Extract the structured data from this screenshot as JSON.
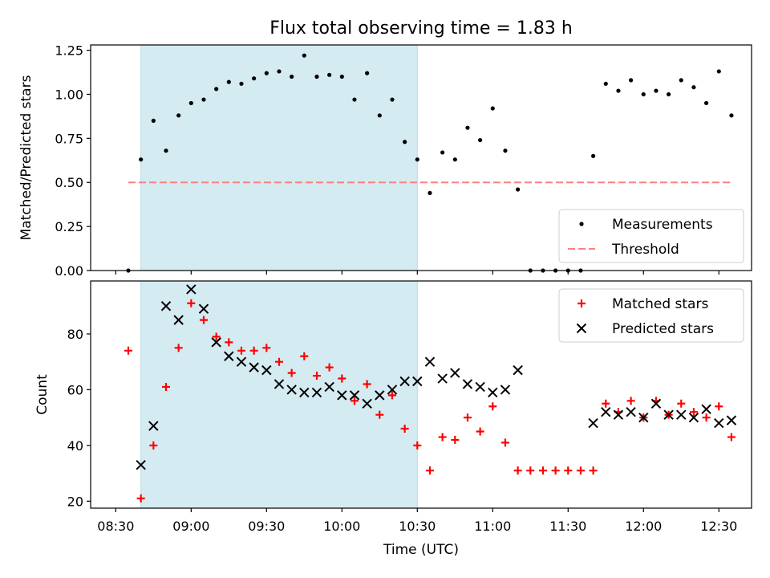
{
  "chart_data": {
    "type": "scatter",
    "title": "Flux total observing time = 1.83 h",
    "xlabel": "Time (UTC)",
    "x_ticks": [
      "08:30",
      "09:00",
      "09:30",
      "10:00",
      "10:30",
      "11:00",
      "11:30",
      "12:00",
      "12:30"
    ],
    "shaded_interval": {
      "x_start": "08:40",
      "x_end": "10:30",
      "color": "#d4ebf1"
    },
    "panels": [
      {
        "ylabel": "Matched/Predicted stars",
        "ylim": [
          0,
          1.28
        ],
        "y_ticks": [
          "0.00",
          "0.25",
          "0.50",
          "0.75",
          "1.00",
          "1.25"
        ],
        "legend_position": "lower-right",
        "series": [
          {
            "name": "Measurements",
            "marker": "dot",
            "color": "#000000",
            "points": [
              [
                "08:35",
                0.0
              ],
              [
                "08:40",
                0.63
              ],
              [
                "08:45",
                0.85
              ],
              [
                "08:50",
                0.68
              ],
              [
                "08:55",
                0.88
              ],
              [
                "09:00",
                0.95
              ],
              [
                "09:05",
                0.97
              ],
              [
                "09:10",
                1.03
              ],
              [
                "09:15",
                1.07
              ],
              [
                "09:20",
                1.06
              ],
              [
                "09:25",
                1.09
              ],
              [
                "09:30",
                1.12
              ],
              [
                "09:35",
                1.13
              ],
              [
                "09:40",
                1.1
              ],
              [
                "09:45",
                1.22
              ],
              [
                "09:50",
                1.1
              ],
              [
                "09:55",
                1.11
              ],
              [
                "10:00",
                1.1
              ],
              [
                "10:05",
                0.97
              ],
              [
                "10:10",
                1.12
              ],
              [
                "10:15",
                0.88
              ],
              [
                "10:20",
                0.97
              ],
              [
                "10:25",
                0.73
              ],
              [
                "10:30",
                0.63
              ],
              [
                "10:35",
                0.44
              ],
              [
                "10:40",
                0.67
              ],
              [
                "10:45",
                0.63
              ],
              [
                "10:50",
                0.81
              ],
              [
                "10:55",
                0.74
              ],
              [
                "11:00",
                0.92
              ],
              [
                "11:05",
                0.68
              ],
              [
                "11:10",
                0.46
              ],
              [
                "11:15",
                0.0
              ],
              [
                "11:20",
                0.0
              ],
              [
                "11:25",
                0.0
              ],
              [
                "11:30",
                0.0
              ],
              [
                "11:35",
                0.0
              ],
              [
                "11:40",
                0.65
              ],
              [
                "11:45",
                1.06
              ],
              [
                "11:50",
                1.02
              ],
              [
                "11:55",
                1.08
              ],
              [
                "12:00",
                1.0
              ],
              [
                "12:05",
                1.02
              ],
              [
                "12:10",
                1.0
              ],
              [
                "12:15",
                1.08
              ],
              [
                "12:20",
                1.04
              ],
              [
                "12:25",
                0.95
              ],
              [
                "12:30",
                1.13
              ],
              [
                "12:35",
                0.88
              ]
            ]
          },
          {
            "name": "Threshold",
            "marker": "dashed-line",
            "color": "#ff7f7f",
            "points": [
              [
                "08:35",
                0.5
              ],
              [
                "12:35",
                0.5
              ]
            ]
          }
        ]
      },
      {
        "ylabel": "Count",
        "ylim": [
          17.5,
          99
        ],
        "y_ticks": [
          "20",
          "40",
          "60",
          "80"
        ],
        "legend_position": "upper-right",
        "series": [
          {
            "name": "Matched stars",
            "marker": "plus",
            "color": "#ff0000",
            "points": [
              [
                "08:35",
                74
              ],
              [
                "08:40",
                21
              ],
              [
                "08:45",
                40
              ],
              [
                "08:50",
                61
              ],
              [
                "08:55",
                75
              ],
              [
                "09:00",
                91
              ],
              [
                "09:05",
                85
              ],
              [
                "09:10",
                79
              ],
              [
                "09:15",
                77
              ],
              [
                "09:20",
                74
              ],
              [
                "09:25",
                74
              ],
              [
                "09:30",
                75
              ],
              [
                "09:35",
                70
              ],
              [
                "09:40",
                66
              ],
              [
                "09:45",
                72
              ],
              [
                "09:50",
                65
              ],
              [
                "09:55",
                68
              ],
              [
                "10:00",
                64
              ],
              [
                "10:05",
                56
              ],
              [
                "10:10",
                62
              ],
              [
                "10:15",
                51
              ],
              [
                "10:20",
                58
              ],
              [
                "10:25",
                46
              ],
              [
                "10:30",
                40
              ],
              [
                "10:35",
                31
              ],
              [
                "10:40",
                43
              ],
              [
                "10:45",
                42
              ],
              [
                "10:50",
                50
              ],
              [
                "10:55",
                45
              ],
              [
                "11:00",
                54
              ],
              [
                "11:05",
                41
              ],
              [
                "11:10",
                31
              ],
              [
                "11:15",
                31
              ],
              [
                "11:20",
                31
              ],
              [
                "11:25",
                31
              ],
              [
                "11:30",
                31
              ],
              [
                "11:35",
                31
              ],
              [
                "11:40",
                31
              ],
              [
                "11:45",
                55
              ],
              [
                "11:50",
                52
              ],
              [
                "11:55",
                56
              ],
              [
                "12:00",
                50
              ],
              [
                "12:05",
                56
              ],
              [
                "12:10",
                51
              ],
              [
                "12:15",
                55
              ],
              [
                "12:20",
                52
              ],
              [
                "12:25",
                50
              ],
              [
                "12:30",
                54
              ],
              [
                "12:35",
                43
              ]
            ]
          },
          {
            "name": "Predicted stars",
            "marker": "x",
            "color": "#000000",
            "points": [
              [
                "08:40",
                33
              ],
              [
                "08:45",
                47
              ],
              [
                "08:50",
                90
              ],
              [
                "08:55",
                85
              ],
              [
                "09:00",
                96
              ],
              [
                "09:05",
                89
              ],
              [
                "09:10",
                77
              ],
              [
                "09:15",
                72
              ],
              [
                "09:20",
                70
              ],
              [
                "09:25",
                68
              ],
              [
                "09:30",
                67
              ],
              [
                "09:35",
                62
              ],
              [
                "09:40",
                60
              ],
              [
                "09:45",
                59
              ],
              [
                "09:50",
                59
              ],
              [
                "09:55",
                61
              ],
              [
                "10:00",
                58
              ],
              [
                "10:05",
                58
              ],
              [
                "10:10",
                55
              ],
              [
                "10:15",
                58
              ],
              [
                "10:20",
                60
              ],
              [
                "10:25",
                63
              ],
              [
                "10:30",
                63
              ],
              [
                "10:35",
                70
              ],
              [
                "10:40",
                64
              ],
              [
                "10:45",
                66
              ],
              [
                "10:50",
                62
              ],
              [
                "10:55",
                61
              ],
              [
                "11:00",
                59
              ],
              [
                "11:05",
                60
              ],
              [
                "11:10",
                67
              ],
              [
                "11:40",
                48
              ],
              [
                "11:45",
                52
              ],
              [
                "11:50",
                51
              ],
              [
                "11:55",
                52
              ],
              [
                "12:00",
                50
              ],
              [
                "12:05",
                55
              ],
              [
                "12:10",
                51
              ],
              [
                "12:15",
                51
              ],
              [
                "12:20",
                50
              ],
              [
                "12:25",
                53
              ],
              [
                "12:30",
                48
              ],
              [
                "12:35",
                49
              ]
            ]
          }
        ]
      }
    ]
  }
}
